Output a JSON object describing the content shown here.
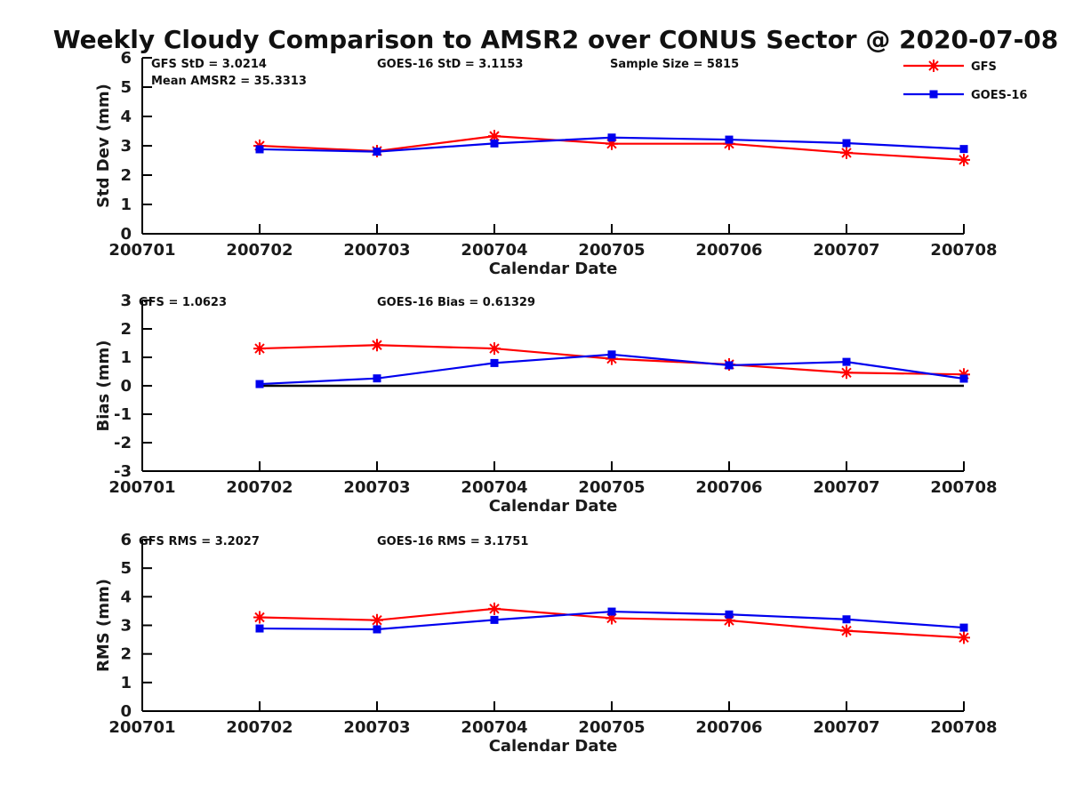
{
  "title": "Weekly Cloudy Comparison to AMSR2 over CONUS Sector @ 2020-07-08",
  "legend": [
    {
      "label": "GFS",
      "color": "#ff0000",
      "marker": "star"
    },
    {
      "label": "GOES-16",
      "color": "#0000ee",
      "marker": "square"
    }
  ],
  "chart_data": [
    {
      "type": "line",
      "name": "std-dev",
      "ylabel": "Std Dev (mm)",
      "xlabel": "Calendar Date",
      "ylim": [
        0,
        6
      ],
      "yticks": [
        0,
        1,
        2,
        3,
        4,
        5,
        6
      ],
      "x_categories": [
        "200701",
        "200702",
        "200703",
        "200704",
        "200705",
        "200706",
        "200707",
        "200708"
      ],
      "grid": false,
      "legend_position": "top-right-outside",
      "annotations": [
        "GFS StD = 3.0214",
        "Mean AMSR2 = 35.3313",
        "GOES-16 StD = 3.1153",
        "Sample Size = 5815"
      ],
      "series": [
        {
          "name": "GFS",
          "color": "#ff0000",
          "marker": "star",
          "x": [
            "200702",
            "200703",
            "200704",
            "200705",
            "200706",
            "200707",
            "200708"
          ],
          "values": [
            3.0,
            2.82,
            3.33,
            3.07,
            3.07,
            2.76,
            2.52
          ]
        },
        {
          "name": "GOES-16",
          "color": "#0000ee",
          "marker": "square",
          "x": [
            "200702",
            "200703",
            "200704",
            "200705",
            "200706",
            "200707",
            "200708"
          ],
          "values": [
            2.88,
            2.8,
            3.08,
            3.28,
            3.21,
            3.09,
            2.89
          ]
        }
      ]
    },
    {
      "type": "line",
      "name": "bias",
      "ylabel": "Bias (mm)",
      "xlabel": "Calendar Date",
      "ylim": [
        -3,
        3
      ],
      "yticks": [
        -3,
        -2,
        -1,
        0,
        1,
        2,
        3
      ],
      "x_categories": [
        "200701",
        "200702",
        "200703",
        "200704",
        "200705",
        "200706",
        "200707",
        "200708"
      ],
      "grid": false,
      "annotations": [
        "GFS = 1.0623",
        "GOES-16 Bias = 0.61329"
      ],
      "zero_line": {
        "from": "200702",
        "to": "200708",
        "value": 0
      },
      "series": [
        {
          "name": "GFS",
          "color": "#ff0000",
          "marker": "star",
          "x": [
            "200702",
            "200703",
            "200704",
            "200705",
            "200706",
            "200707",
            "200708"
          ],
          "values": [
            1.31,
            1.43,
            1.31,
            0.95,
            0.75,
            0.46,
            0.4
          ]
        },
        {
          "name": "GOES-16",
          "color": "#0000ee",
          "marker": "square",
          "x": [
            "200702",
            "200703",
            "200704",
            "200705",
            "200706",
            "200707",
            "200708"
          ],
          "values": [
            0.06,
            0.26,
            0.8,
            1.1,
            0.72,
            0.84,
            0.25
          ]
        }
      ]
    },
    {
      "type": "line",
      "name": "rms",
      "ylabel": "RMS (mm)",
      "xlabel": "Calendar Date",
      "ylim": [
        0,
        6
      ],
      "yticks": [
        0,
        1,
        2,
        3,
        4,
        5,
        6
      ],
      "x_categories": [
        "200701",
        "200702",
        "200703",
        "200704",
        "200705",
        "200706",
        "200707",
        "200708"
      ],
      "grid": false,
      "annotations": [
        "GFS RMS = 3.2027",
        "GOES-16 RMS = 3.1751"
      ],
      "series": [
        {
          "name": "GFS",
          "color": "#ff0000",
          "marker": "star",
          "x": [
            "200702",
            "200703",
            "200704",
            "200705",
            "200706",
            "200707",
            "200708"
          ],
          "values": [
            3.28,
            3.18,
            3.58,
            3.25,
            3.17,
            2.81,
            2.57
          ]
        },
        {
          "name": "GOES-16",
          "color": "#0000ee",
          "marker": "square",
          "x": [
            "200702",
            "200703",
            "200704",
            "200705",
            "200706",
            "200707",
            "200708"
          ],
          "values": [
            2.89,
            2.86,
            3.19,
            3.48,
            3.38,
            3.21,
            2.92
          ]
        }
      ]
    }
  ]
}
